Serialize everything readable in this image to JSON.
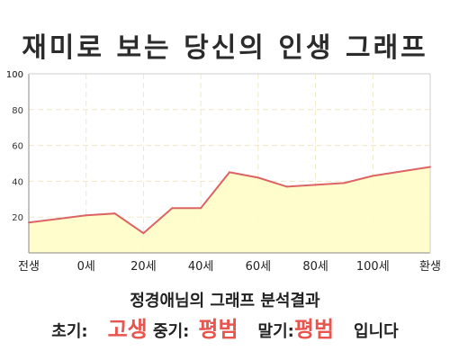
{
  "chart_data": {
    "type": "area",
    "title": "재미로 보는 당신의 인생 그래프",
    "categories": [
      "전생",
      "0세",
      "20세",
      "40세",
      "60세",
      "80세",
      "100세",
      "환생"
    ],
    "x": [
      -20,
      0,
      10,
      20,
      30,
      40,
      50,
      60,
      70,
      80,
      90,
      100,
      120
    ],
    "values": [
      17,
      21,
      22,
      11,
      25,
      25,
      45,
      42,
      37,
      38,
      39,
      43,
      48
    ],
    "yticks": [
      20,
      40,
      60,
      80,
      100
    ],
    "ylim": [
      0,
      100
    ],
    "xlim": [
      -20,
      120
    ],
    "grid": true,
    "colors": {
      "fill": "#fffdc6",
      "line": "#dc6464",
      "grid": "#eeeac4",
      "axis": "#888888"
    }
  },
  "summary": {
    "subtitle": "정경애님의 그래프 분석결과",
    "early_label": "초기:",
    "early_value": "고생",
    "middle_label": "중기:",
    "middle_value": "평범",
    "late_label": "말기:",
    "late_value": "평범",
    "ending": "입니다"
  }
}
